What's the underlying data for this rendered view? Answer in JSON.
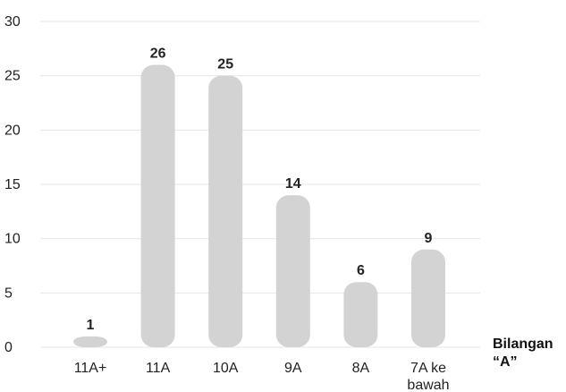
{
  "chart_data": {
    "type": "bar",
    "categories": [
      "11A+",
      "11A",
      "10A",
      "9A",
      "8A",
      "7A ke bawah"
    ],
    "values": [
      1,
      26,
      25,
      14,
      6,
      9
    ],
    "title": "",
    "xlabel": "Bilangan “A”",
    "ylabel": "",
    "ylim": [
      0,
      30
    ],
    "yticks": [
      0,
      5,
      10,
      15,
      20,
      25,
      30
    ],
    "grid": true,
    "bar_color": "#d3d3d3",
    "grid_color": "#e6e6e6",
    "text_color": "#222222"
  }
}
